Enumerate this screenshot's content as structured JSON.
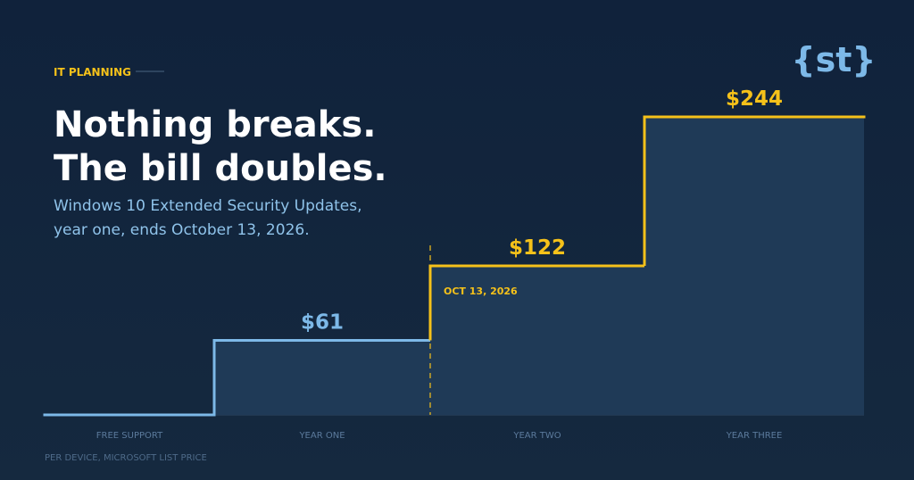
{
  "logo": "{st}",
  "chart_data": {
    "type": "step",
    "eyebrow": "IT PLANNING",
    "title": [
      "Nothing breaks.",
      "The bill doubles."
    ],
    "subtitle": [
      "Windows 10 Extended Security Updates,",
      "year one, ends October 13, 2026."
    ],
    "categories": [
      "FREE SUPPORT",
      "YEAR ONE",
      "YEAR TWO",
      "YEAR THREE"
    ],
    "values": [
      0,
      61,
      122,
      244
    ],
    "value_labels": [
      null,
      "$61",
      "$122",
      "$244"
    ],
    "colors": [
      "#7db9e8",
      "#7db9e8",
      "#f5c11a",
      "#f5c11a"
    ],
    "annotation": {
      "label": "OCT 13, 2026",
      "color": "#f5c11a"
    },
    "footnote": "PER DEVICE, MICROSOFT LIST PRICE"
  }
}
